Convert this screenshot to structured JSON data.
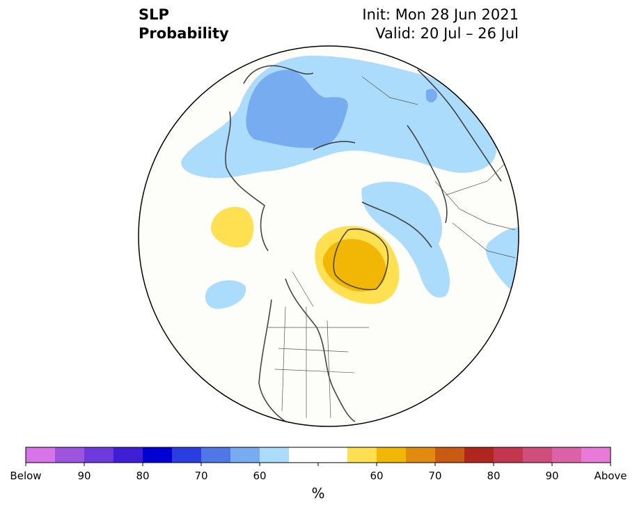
{
  "title": {
    "left_line1": "SLP",
    "left_line2": "Probability",
    "right_line1": "Init: Mon 28 Jun 2021",
    "right_line2": "Valid: 20 Jul – 26 Jul"
  },
  "colorbar": {
    "colors": [
      "#d674e8",
      "#9d55df",
      "#6d3ade",
      "#3f1fd6",
      "#0000d2",
      "#2a3de0",
      "#4f77e6",
      "#77adf0",
      "#acdcfb",
      "#ffffff",
      "#ffffff",
      "#fee051",
      "#f2b705",
      "#e08b0e",
      "#c95a14",
      "#b1251f",
      "#c4354e",
      "#d04e7c",
      "#da63a8",
      "#e87ad8"
    ],
    "labels": [
      "Below",
      "90",
      "80",
      "70",
      "60",
      "",
      "60",
      "70",
      "80",
      "90",
      "Above"
    ],
    "unit": "%"
  },
  "legend_colors": {
    "below_light": "#acdcfb",
    "below_medium": "#77adf0",
    "above_light": "#fee051",
    "above_medium": "#f2b705"
  }
}
